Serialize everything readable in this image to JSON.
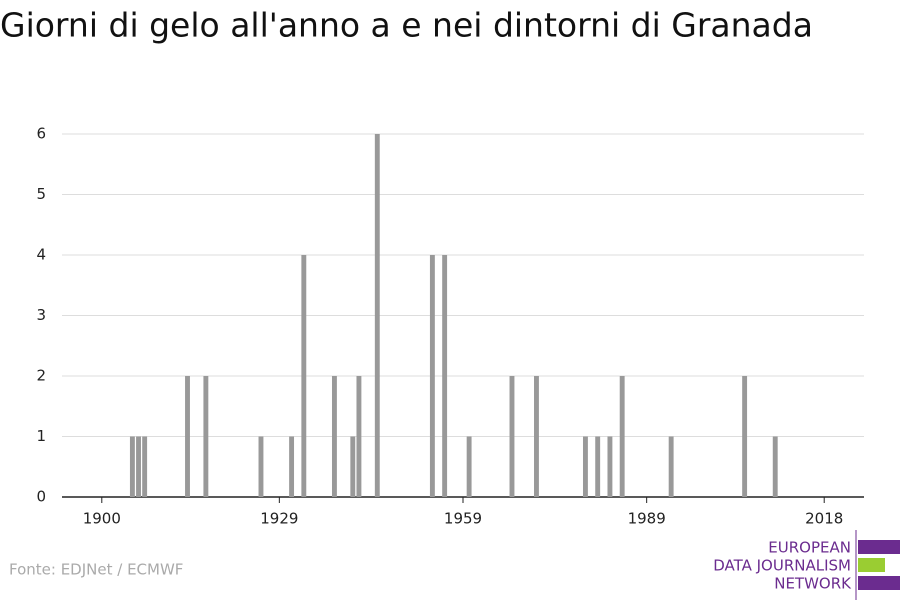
{
  "chart_data": {
    "type": "bar",
    "title": "Giorni di gelo all'anno a e nei dintorni di Granada",
    "x": [
      1905,
      1906,
      1907,
      1914,
      1917,
      1926,
      1931,
      1933,
      1938,
      1941,
      1942,
      1945,
      1954,
      1956,
      1960,
      1967,
      1971,
      1979,
      1981,
      1983,
      1985,
      1993,
      2005,
      2010
    ],
    "values": [
      1,
      1,
      1,
      2,
      2,
      1,
      1,
      4,
      2,
      1,
      2,
      6,
      4,
      4,
      1,
      2,
      2,
      1,
      1,
      1,
      2,
      1,
      2,
      1
    ],
    "color": "#999999",
    "xlim": [
      1893.5,
      2024.5
    ],
    "xticks": [
      1900,
      1929,
      1959,
      1989,
      2018
    ],
    "ylim": [
      0,
      6
    ],
    "yticks": [
      0,
      1,
      2,
      3,
      4,
      5,
      6
    ],
    "grid": true,
    "source": "Fonte: EDJNet / ECMWF",
    "logo": [
      "EUROPEAN",
      "DATA JOURNALISM",
      "NETWORK"
    ]
  }
}
